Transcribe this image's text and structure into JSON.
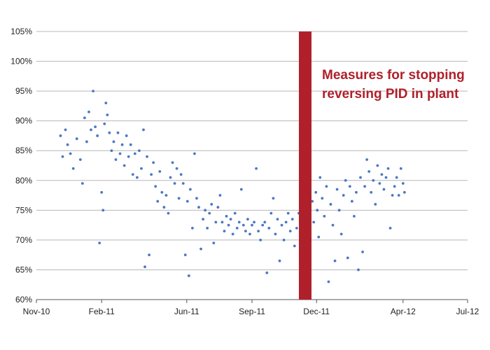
{
  "chart_data": {
    "type": "scatter",
    "title": "",
    "xlabel": "",
    "ylabel": "",
    "x_range": [
      "2010-11-01",
      "2012-07-01"
    ],
    "xlim": [
      "2010-11-01",
      "2012-07-01"
    ],
    "ylim": [
      60,
      105
    ],
    "grid": true,
    "point_color": "#4a78c2",
    "x_ticks": [
      {
        "date": "2010-11-01",
        "label": "Nov-10"
      },
      {
        "date": "2011-02-01",
        "label": "Feb-11"
      },
      {
        "date": "2011-06-01",
        "label": "Jun-11"
      },
      {
        "date": "2011-09-01",
        "label": "Sep-11"
      },
      {
        "date": "2011-12-01",
        "label": "Dec-11"
      },
      {
        "date": "2012-04-01",
        "label": "Apr-12"
      },
      {
        "date": "2012-07-01",
        "label": "Jul-12"
      }
    ],
    "y_ticks": [
      {
        "value": 60,
        "label": "60%"
      },
      {
        "value": 65,
        "label": "65%"
      },
      {
        "value": 70,
        "label": "70%"
      },
      {
        "value": 75,
        "label": "75%"
      },
      {
        "value": 80,
        "label": "80%"
      },
      {
        "value": 85,
        "label": "85%"
      },
      {
        "value": 90,
        "label": "90%"
      },
      {
        "value": 95,
        "label": "95%"
      },
      {
        "value": 100,
        "label": "100%"
      },
      {
        "value": 105,
        "label": "105%"
      }
    ],
    "marker": {
      "date": "2011-11-15",
      "color": "#b0202a",
      "label_lines": [
        "Measures for stopping",
        "reversing PID in plant"
      ]
    },
    "series": [
      {
        "points": [
          [
            "2010-12-05",
            87.5
          ],
          [
            "2010-12-08",
            84.0
          ],
          [
            "2010-12-12",
            88.5
          ],
          [
            "2010-12-15",
            86.0
          ],
          [
            "2010-12-19",
            84.5
          ],
          [
            "2010-12-23",
            82.0
          ],
          [
            "2010-12-28",
            87.0
          ],
          [
            "2011-01-02",
            83.5
          ],
          [
            "2011-01-05",
            79.5
          ],
          [
            "2011-01-08",
            90.5
          ],
          [
            "2011-01-11",
            86.5
          ],
          [
            "2011-01-14",
            91.5
          ],
          [
            "2011-01-17",
            88.5
          ],
          [
            "2011-01-20",
            95.0
          ],
          [
            "2011-01-23",
            89.0
          ],
          [
            "2011-01-26",
            87.5
          ],
          [
            "2011-01-29",
            69.5
          ],
          [
            "2011-02-01",
            78.0
          ],
          [
            "2011-02-03",
            75.0
          ],
          [
            "2011-02-05",
            89.5
          ],
          [
            "2011-02-07",
            93.0
          ],
          [
            "2011-02-09",
            91.0
          ],
          [
            "2011-02-12",
            88.0
          ],
          [
            "2011-02-15",
            85.0
          ],
          [
            "2011-02-18",
            86.5
          ],
          [
            "2011-02-21",
            83.5
          ],
          [
            "2011-02-24",
            88.0
          ],
          [
            "2011-02-27",
            84.5
          ],
          [
            "2011-03-02",
            86.0
          ],
          [
            "2011-03-05",
            82.5
          ],
          [
            "2011-03-08",
            87.5
          ],
          [
            "2011-03-11",
            84.0
          ],
          [
            "2011-03-14",
            86.0
          ],
          [
            "2011-03-17",
            81.0
          ],
          [
            "2011-03-20",
            84.5
          ],
          [
            "2011-03-23",
            80.5
          ],
          [
            "2011-03-26",
            85.0
          ],
          [
            "2011-03-29",
            82.0
          ],
          [
            "2011-04-01",
            88.5
          ],
          [
            "2011-04-03",
            65.5
          ],
          [
            "2011-04-06",
            84.0
          ],
          [
            "2011-04-09",
            67.5
          ],
          [
            "2011-04-12",
            81.0
          ],
          [
            "2011-04-15",
            83.0
          ],
          [
            "2011-04-18",
            79.0
          ],
          [
            "2011-04-21",
            76.5
          ],
          [
            "2011-04-24",
            81.5
          ],
          [
            "2011-04-27",
            78.0
          ],
          [
            "2011-04-30",
            75.5
          ],
          [
            "2011-05-03",
            77.5
          ],
          [
            "2011-05-06",
            74.5
          ],
          [
            "2011-05-09",
            80.5
          ],
          [
            "2011-05-12",
            83.0
          ],
          [
            "2011-05-15",
            79.5
          ],
          [
            "2011-05-18",
            82.0
          ],
          [
            "2011-05-21",
            77.0
          ],
          [
            "2011-05-24",
            81.0
          ],
          [
            "2011-05-27",
            79.5
          ],
          [
            "2011-05-30",
            67.5
          ],
          [
            "2011-06-02",
            76.5
          ],
          [
            "2011-06-04",
            64.0
          ],
          [
            "2011-06-06",
            78.5
          ],
          [
            "2011-06-09",
            72.0
          ],
          [
            "2011-06-12",
            84.5
          ],
          [
            "2011-06-15",
            77.0
          ],
          [
            "2011-06-18",
            75.5
          ],
          [
            "2011-06-21",
            68.5
          ],
          [
            "2011-06-24",
            73.5
          ],
          [
            "2011-06-27",
            75.0
          ],
          [
            "2011-06-30",
            72.0
          ],
          [
            "2011-07-03",
            74.5
          ],
          [
            "2011-07-06",
            76.0
          ],
          [
            "2011-07-09",
            69.5
          ],
          [
            "2011-07-12",
            73.0
          ],
          [
            "2011-07-15",
            75.5
          ],
          [
            "2011-07-18",
            77.5
          ],
          [
            "2011-07-21",
            73.0
          ],
          [
            "2011-07-24",
            71.5
          ],
          [
            "2011-07-27",
            74.0
          ],
          [
            "2011-07-30",
            72.5
          ],
          [
            "2011-08-02",
            73.5
          ],
          [
            "2011-08-05",
            71.0
          ],
          [
            "2011-08-08",
            74.5
          ],
          [
            "2011-08-11",
            72.0
          ],
          [
            "2011-08-14",
            73.0
          ],
          [
            "2011-08-17",
            78.5
          ],
          [
            "2011-08-20",
            72.5
          ],
          [
            "2011-08-23",
            71.5
          ],
          [
            "2011-08-26",
            73.5
          ],
          [
            "2011-08-29",
            71.0
          ],
          [
            "2011-09-01",
            72.5
          ],
          [
            "2011-09-04",
            73.0
          ],
          [
            "2011-09-07",
            82.0
          ],
          [
            "2011-09-10",
            71.5
          ],
          [
            "2011-09-13",
            70.0
          ],
          [
            "2011-09-16",
            72.5
          ],
          [
            "2011-09-19",
            73.0
          ],
          [
            "2011-09-22",
            64.5
          ],
          [
            "2011-09-25",
            72.0
          ],
          [
            "2011-09-28",
            74.5
          ],
          [
            "2011-10-01",
            77.0
          ],
          [
            "2011-10-04",
            71.0
          ],
          [
            "2011-10-07",
            73.5
          ],
          [
            "2011-10-10",
            66.5
          ],
          [
            "2011-10-13",
            72.5
          ],
          [
            "2011-10-16",
            70.0
          ],
          [
            "2011-10-19",
            73.0
          ],
          [
            "2011-10-22",
            74.5
          ],
          [
            "2011-10-25",
            71.5
          ],
          [
            "2011-10-28",
            73.5
          ],
          [
            "2011-10-31",
            69.0
          ],
          [
            "2011-11-03",
            72.0
          ],
          [
            "2011-11-06",
            74.5
          ],
          [
            "2011-11-09",
            73.0
          ],
          [
            "2011-11-25",
            76.5
          ],
          [
            "2011-11-27",
            73.0
          ],
          [
            "2011-11-30",
            78.0
          ],
          [
            "2011-12-02",
            75.0
          ],
          [
            "2011-12-04",
            70.5
          ],
          [
            "2011-12-06",
            80.5
          ],
          [
            "2011-12-09",
            77.0
          ],
          [
            "2011-12-12",
            74.0
          ],
          [
            "2011-12-15",
            79.0
          ],
          [
            "2011-12-18",
            63.0
          ],
          [
            "2011-12-21",
            76.0
          ],
          [
            "2011-12-24",
            72.5
          ],
          [
            "2011-12-27",
            66.5
          ],
          [
            "2011-12-30",
            78.5
          ],
          [
            "2012-01-02",
            75.0
          ],
          [
            "2012-01-05",
            71.0
          ],
          [
            "2012-01-08",
            77.5
          ],
          [
            "2012-01-11",
            80.0
          ],
          [
            "2012-01-14",
            67.0
          ],
          [
            "2012-01-17",
            79.0
          ],
          [
            "2012-01-20",
            76.5
          ],
          [
            "2012-01-23",
            74.0
          ],
          [
            "2012-01-26",
            78.0
          ],
          [
            "2012-01-29",
            65.0
          ],
          [
            "2012-02-01",
            80.5
          ],
          [
            "2012-02-04",
            68.0
          ],
          [
            "2012-02-07",
            79.0
          ],
          [
            "2012-02-10",
            83.5
          ],
          [
            "2012-02-13",
            81.5
          ],
          [
            "2012-02-16",
            78.0
          ],
          [
            "2012-02-19",
            80.0
          ],
          [
            "2012-02-22",
            76.0
          ],
          [
            "2012-02-25",
            82.5
          ],
          [
            "2012-02-28",
            79.5
          ],
          [
            "2012-03-02",
            81.0
          ],
          [
            "2012-03-05",
            78.5
          ],
          [
            "2012-03-08",
            80.5
          ],
          [
            "2012-03-11",
            82.0
          ],
          [
            "2012-03-14",
            72.0
          ],
          [
            "2012-03-17",
            77.5
          ],
          [
            "2012-03-20",
            79.0
          ],
          [
            "2012-03-23",
            80.5
          ],
          [
            "2012-03-26",
            77.5
          ],
          [
            "2012-03-29",
            82.0
          ],
          [
            "2012-04-01",
            79.5
          ],
          [
            "2012-04-03",
            78.0
          ]
        ]
      }
    ]
  }
}
